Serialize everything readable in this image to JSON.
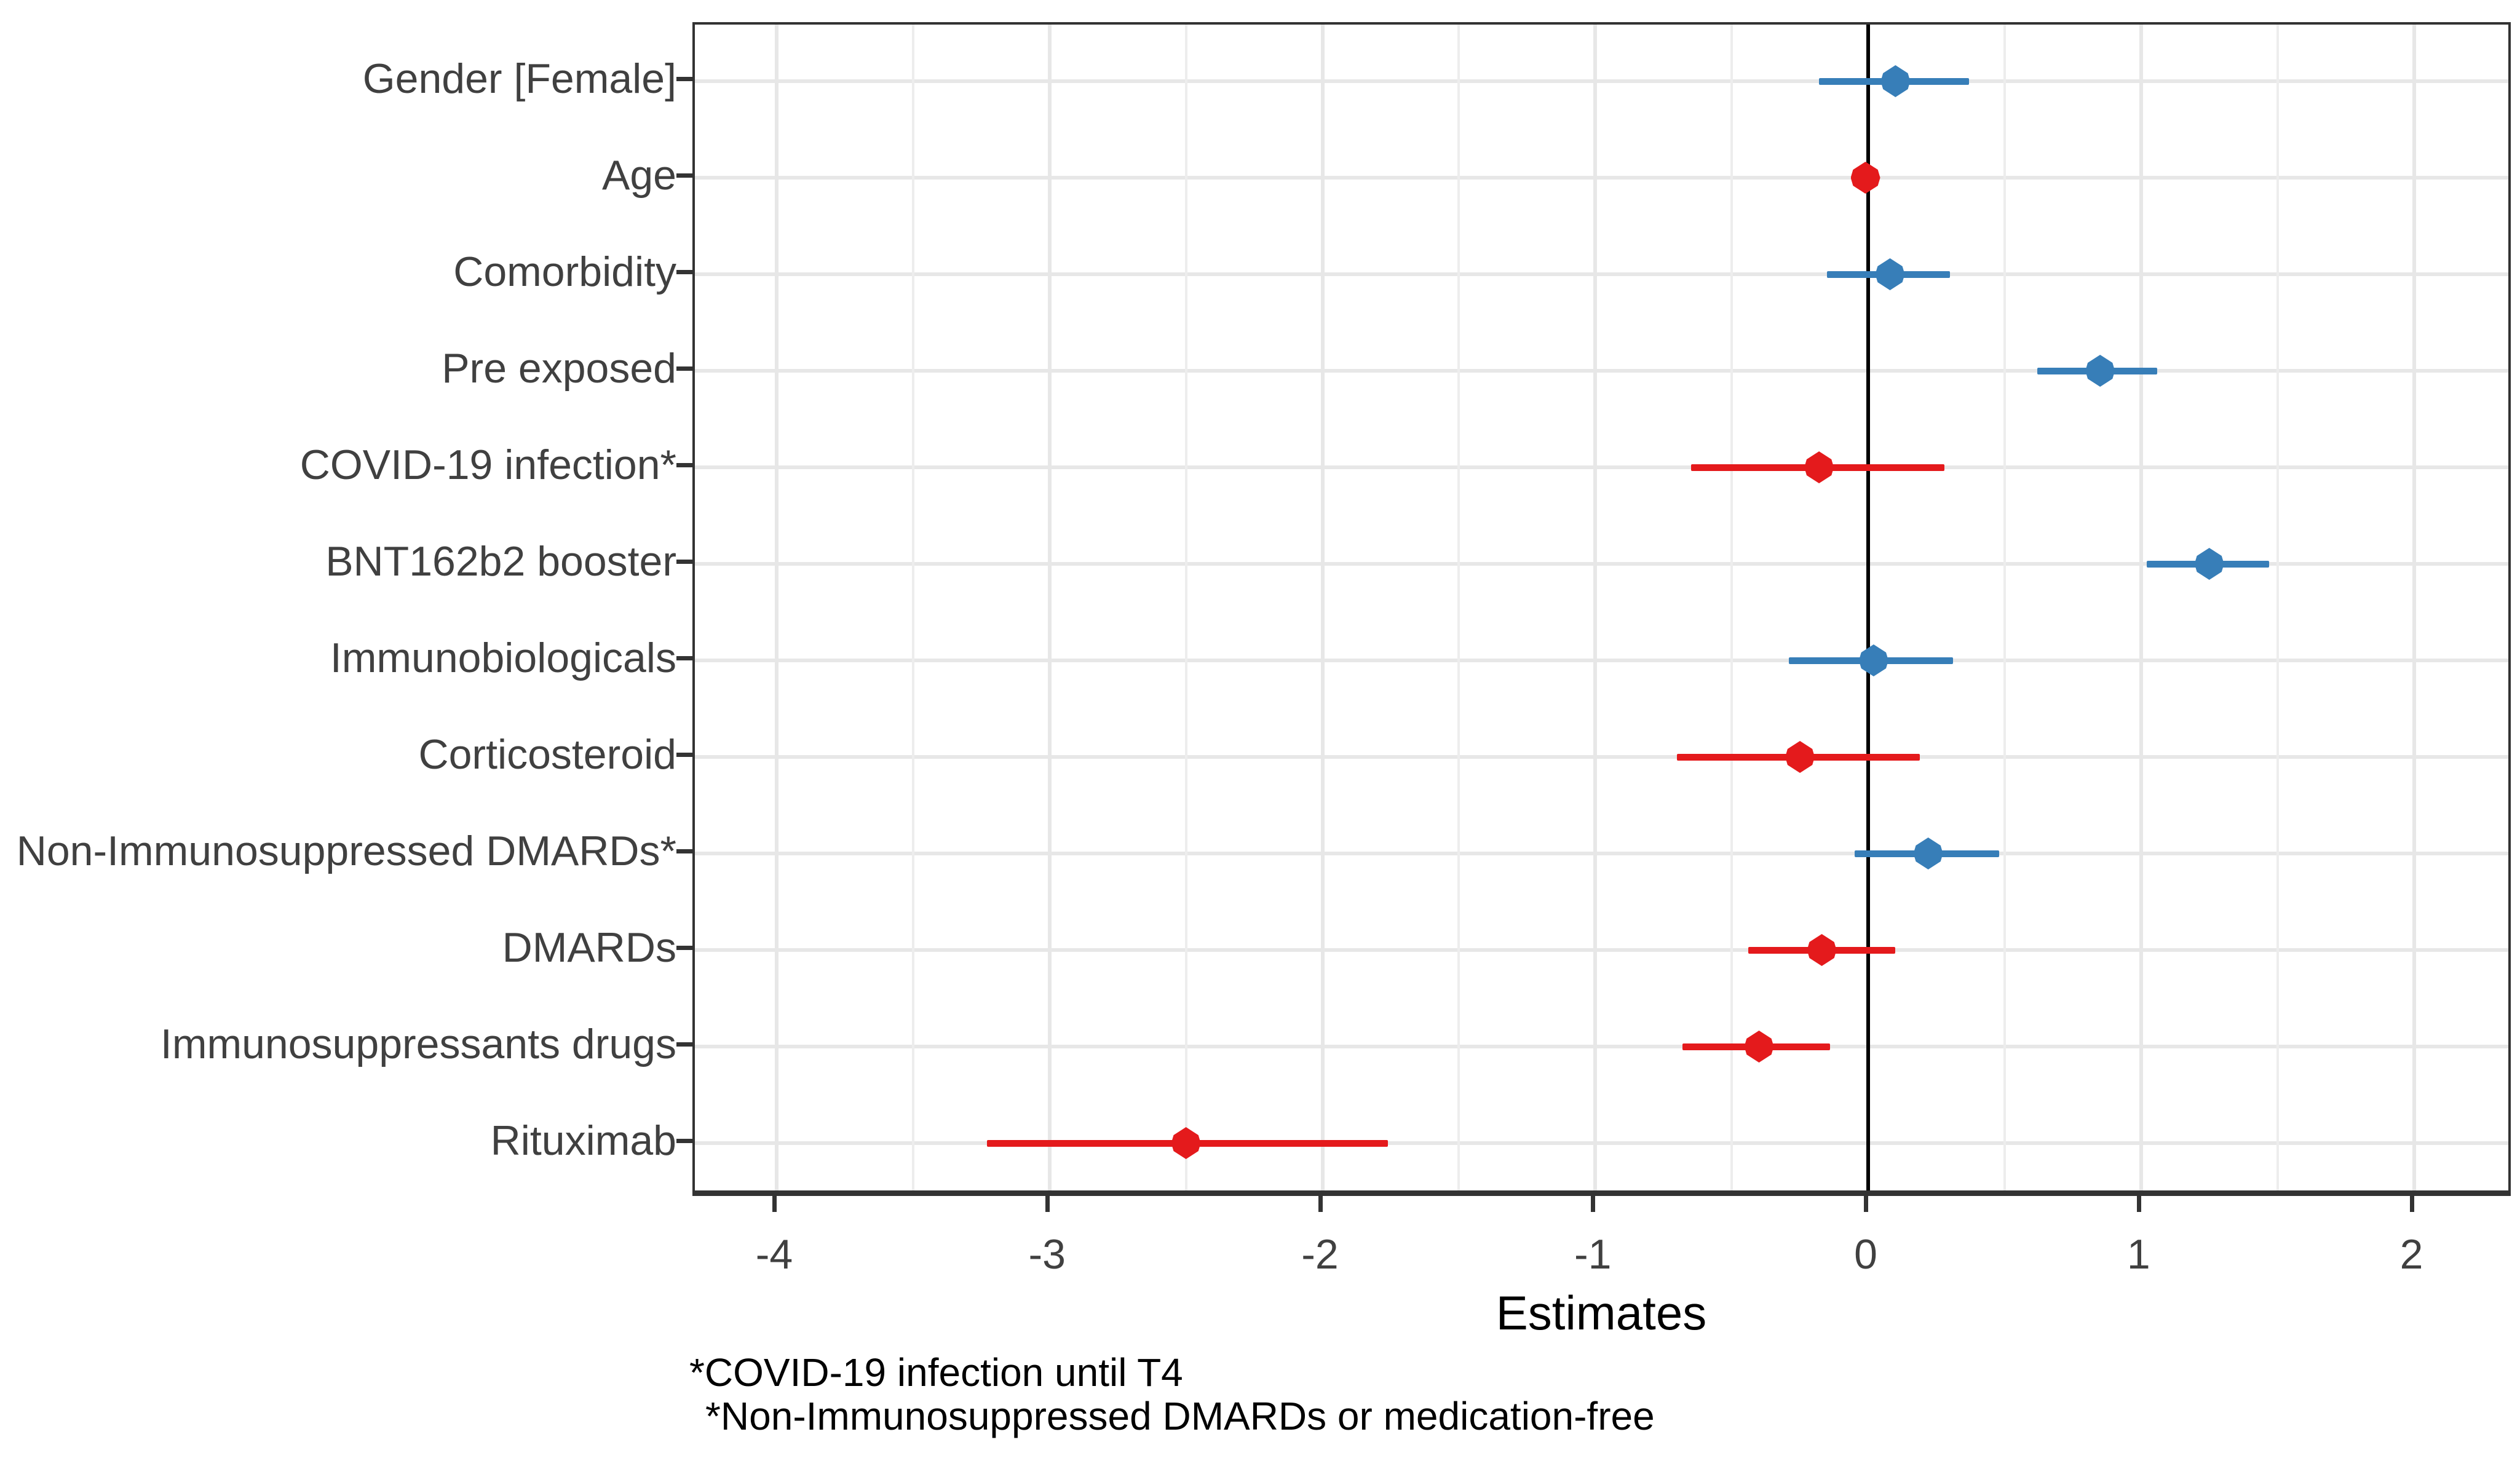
{
  "chart_data": {
    "type": "scatter",
    "subtype": "forest-plot",
    "title": "",
    "xlabel": "Estimates",
    "ylabel": "",
    "xlim": [
      -4.3,
      2.37
    ],
    "x_major_ticks": [
      -4,
      -3,
      -2,
      -1,
      0,
      1,
      2
    ],
    "x_major_tick_labels": [
      "-4",
      "-3",
      "-2",
      "-1",
      "0",
      "1",
      "2"
    ],
    "x_minor_ticks": [
      -3.5,
      -2.5,
      -1.5,
      -0.5,
      0.5,
      1.5
    ],
    "grid": "on",
    "legend": "none",
    "zero_reference_line": 0,
    "colors": {
      "positive": "#377EB8",
      "negative": "#E41A1C",
      "zero_line": "#000000",
      "panel_border": "#333333",
      "grid_major": "#E7E7E7",
      "grid_minor": "#EDEDED",
      "axis_text": "#404040",
      "tick_mark": "#333333",
      "title_text": "#000000"
    },
    "series": [
      {
        "label": "Gender [Female]",
        "estimate": 0.1,
        "ci_low": -0.18,
        "ci_high": 0.37,
        "direction": "positive"
      },
      {
        "label": "Age",
        "estimate": -0.01,
        "ci_low": -0.04,
        "ci_high": 0.02,
        "direction": "negative"
      },
      {
        "label": "Comorbidity",
        "estimate": 0.08,
        "ci_low": -0.15,
        "ci_high": 0.3,
        "direction": "positive"
      },
      {
        "label": "Pre exposed",
        "estimate": 0.85,
        "ci_low": 0.62,
        "ci_high": 1.06,
        "direction": "positive"
      },
      {
        "label": "COVID-19 infection*",
        "estimate": -0.18,
        "ci_low": -0.65,
        "ci_high": 0.28,
        "direction": "negative"
      },
      {
        "label": "BNT162b2 booster",
        "estimate": 1.25,
        "ci_low": 1.02,
        "ci_high": 1.47,
        "direction": "positive"
      },
      {
        "label": "Immunobiologicals",
        "estimate": 0.02,
        "ci_low": -0.29,
        "ci_high": 0.31,
        "direction": "positive"
      },
      {
        "label": "Corticosteroid",
        "estimate": -0.25,
        "ci_low": -0.7,
        "ci_high": 0.19,
        "direction": "negative"
      },
      {
        "label": "Non-Immunosuppressed DMARDs*",
        "estimate": 0.22,
        "ci_low": -0.05,
        "ci_high": 0.48,
        "direction": "positive"
      },
      {
        "label": "DMARDs",
        "estimate": -0.17,
        "ci_low": -0.44,
        "ci_high": 0.1,
        "direction": "negative"
      },
      {
        "label": "Immunosuppressants drugs",
        "estimate": -0.4,
        "ci_low": -0.68,
        "ci_high": -0.14,
        "direction": "negative"
      },
      {
        "label": "Rituximab",
        "estimate": -2.5,
        "ci_low": -3.23,
        "ci_high": -1.76,
        "direction": "negative"
      }
    ],
    "footnotes": [
      "*COVID-19 infection until T4",
      "*Non-Immunosuppressed DMARDs or medication-free"
    ]
  }
}
